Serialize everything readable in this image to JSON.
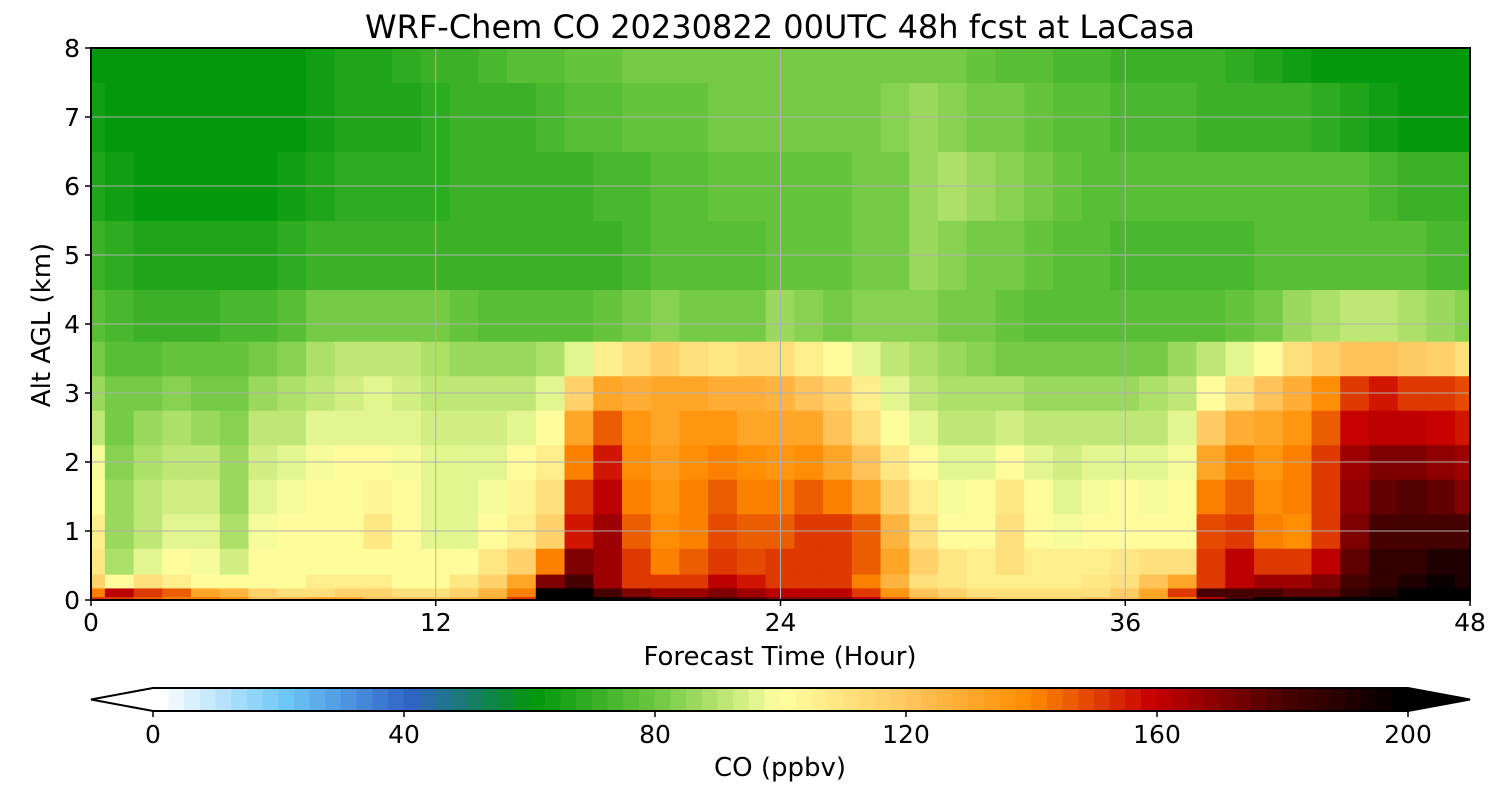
{
  "chart_data": {
    "type": "heatmap",
    "title": "WRF-Chem CO  20230822 00UTC 48h fcst at LaCasa",
    "xlabel": "Forecast Time (Hour)",
    "ylabel": "Alt AGL (km)",
    "xlim": [
      0,
      48
    ],
    "ylim": [
      0,
      8
    ],
    "x_ticks": [
      0,
      12,
      24,
      36,
      48
    ],
    "y_ticks": [
      0,
      1,
      2,
      3,
      4,
      5,
      6,
      7,
      8
    ],
    "grid": true,
    "colorbar": {
      "label": "CO  (ppbv)",
      "min": 0,
      "max": 200,
      "ticks": [
        0,
        40,
        80,
        120,
        160,
        200
      ],
      "extend": "both",
      "colors": [
        "#ffffff",
        "#6ec8f7",
        "#2f64c8",
        "#00960a",
        "#6ec840",
        "#ffffa0",
        "#ffc860",
        "#ff8c00",
        "#c80000",
        "#500000",
        "#000000"
      ]
    },
    "x": [
      0,
      1,
      2,
      3,
      4,
      5,
      6,
      7,
      8,
      9,
      10,
      11,
      12,
      13,
      14,
      15,
      16,
      17,
      18,
      19,
      20,
      21,
      22,
      23,
      24,
      25,
      26,
      27,
      28,
      29,
      30,
      31,
      32,
      33,
      34,
      35,
      36,
      37,
      38,
      39,
      40,
      41,
      42,
      43,
      44,
      45,
      46,
      47,
      48
    ],
    "y": [
      0,
      0.1,
      0.25,
      0.5,
      1,
      1.5,
      2,
      2.5,
      3,
      3.5,
      4,
      5,
      6,
      7,
      8
    ],
    "values": [
      [
        150,
        150,
        145,
        140,
        140,
        135,
        120,
        125,
        130,
        130,
        120,
        120,
        120,
        125,
        130,
        150,
        210,
        205,
        200,
        190,
        180,
        180,
        180,
        175,
        170,
        170,
        170,
        160,
        145,
        130,
        125,
        120,
        115,
        115,
        115,
        120,
        120,
        130,
        140,
        160,
        180,
        200,
        200,
        200,
        210,
        210,
        210,
        215,
        200
      ],
      [
        140,
        160,
        150,
        145,
        130,
        125,
        115,
        110,
        110,
        115,
        115,
        110,
        110,
        115,
        125,
        140,
        200,
        200,
        180,
        170,
        165,
        165,
        170,
        165,
        160,
        160,
        160,
        150,
        135,
        120,
        115,
        112,
        110,
        110,
        110,
        112,
        118,
        130,
        150,
        180,
        180,
        180,
        175,
        175,
        185,
        190,
        200,
        205,
        200
      ],
      [
        115,
        100,
        110,
        105,
        100,
        100,
        100,
        100,
        105,
        105,
        105,
        100,
        102,
        108,
        115,
        130,
        170,
        180,
        165,
        150,
        150,
        150,
        160,
        155,
        150,
        150,
        150,
        140,
        125,
        110,
        108,
        105,
        105,
        105,
        105,
        108,
        112,
        120,
        130,
        150,
        160,
        165,
        165,
        170,
        180,
        185,
        190,
        195,
        190
      ],
      [
        108,
        88,
        95,
        100,
        98,
        94,
        100,
        100,
        100,
        100,
        102,
        100,
        100,
        102,
        108,
        115,
        140,
        170,
        165,
        150,
        140,
        145,
        150,
        148,
        150,
        150,
        150,
        145,
        130,
        115,
        108,
        105,
        110,
        105,
        105,
        105,
        108,
        110,
        112,
        150,
        160,
        150,
        150,
        160,
        175,
        185,
        185,
        190,
        190
      ],
      [
        105,
        85,
        92,
        96,
        95,
        88,
        98,
        100,
        100,
        102,
        108,
        100,
        95,
        95,
        100,
        105,
        115,
        155,
        165,
        145,
        138,
        140,
        148,
        145,
        145,
        150,
        150,
        145,
        125,
        110,
        100,
        102,
        110,
        102,
        98,
        100,
        102,
        100,
        100,
        148,
        150,
        140,
        138,
        150,
        170,
        180,
        180,
        180,
        180
      ],
      [
        102,
        86,
        90,
        94,
        93,
        86,
        96,
        98,
        100,
        100,
        104,
        100,
        96,
        95,
        98,
        104,
        110,
        150,
        160,
        140,
        136,
        140,
        145,
        142,
        140,
        145,
        140,
        130,
        115,
        105,
        98,
        100,
        108,
        100,
        96,
        98,
        100,
        98,
        100,
        140,
        145,
        138,
        140,
        150,
        168,
        175,
        178,
        175,
        172
      ],
      [
        98,
        84,
        88,
        92,
        90,
        85,
        94,
        96,
        98,
        100,
        100,
        98,
        95,
        95,
        96,
        100,
        105,
        140,
        155,
        138,
        134,
        138,
        140,
        138,
        135,
        138,
        130,
        120,
        108,
        100,
        95,
        96,
        100,
        96,
        94,
        95,
        96,
        95,
        98,
        130,
        140,
        135,
        140,
        150,
        165,
        170,
        172,
        168,
        165
      ],
      [
        92,
        82,
        86,
        88,
        86,
        84,
        90,
        92,
        95,
        96,
        97,
        96,
        94,
        93,
        94,
        96,
        100,
        130,
        145,
        135,
        132,
        135,
        135,
        132,
        130,
        130,
        122,
        112,
        102,
        95,
        92,
        92,
        94,
        92,
        90,
        90,
        90,
        92,
        96,
        118,
        128,
        130,
        135,
        145,
        158,
        162,
        162,
        158,
        155
      ],
      [
        85,
        80,
        82,
        84,
        82,
        82,
        86,
        88,
        92,
        94,
        95,
        94,
        92,
        91,
        90,
        92,
        95,
        115,
        130,
        128,
        130,
        132,
        128,
        128,
        125,
        122,
        115,
        105,
        96,
        92,
        88,
        88,
        88,
        86,
        85,
        85,
        85,
        88,
        92,
        102,
        112,
        120,
        128,
        138,
        150,
        155,
        152,
        150,
        148
      ],
      [
        80,
        76,
        76,
        78,
        78,
        78,
        80,
        84,
        88,
        90,
        90,
        90,
        88,
        86,
        85,
        86,
        88,
        95,
        105,
        110,
        115,
        112,
        108,
        110,
        110,
        106,
        100,
        95,
        90,
        88,
        85,
        84,
        82,
        80,
        80,
        80,
        80,
        82,
        86,
        90,
        95,
        102,
        110,
        115,
        120,
        120,
        118,
        115,
        112
      ],
      [
        76,
        74,
        72,
        72,
        72,
        74,
        74,
        76,
        80,
        82,
        80,
        80,
        80,
        78,
        76,
        76,
        76,
        76,
        78,
        80,
        84,
        82,
        80,
        82,
        86,
        84,
        82,
        84,
        84,
        84,
        82,
        80,
        78,
        76,
        76,
        76,
        76,
        76,
        76,
        76,
        78,
        82,
        86,
        88,
        90,
        90,
        88,
        86,
        84
      ],
      [
        70,
        68,
        66,
        66,
        66,
        66,
        66,
        68,
        70,
        72,
        72,
        72,
        72,
        72,
        72,
        72,
        72,
        72,
        72,
        74,
        76,
        76,
        76,
        76,
        78,
        78,
        78,
        80,
        82,
        85,
        84,
        82,
        80,
        78,
        76,
        76,
        74,
        74,
        74,
        74,
        74,
        76,
        76,
        76,
        76,
        76,
        75,
        74,
        74
      ],
      [
        66,
        64,
        62,
        62,
        62,
        62,
        62,
        64,
        66,
        68,
        68,
        68,
        68,
        70,
        70,
        70,
        72,
        72,
        74,
        74,
        76,
        76,
        78,
        78,
        78,
        78,
        78,
        80,
        82,
        86,
        88,
        86,
        84,
        80,
        78,
        76,
        76,
        76,
        76,
        76,
        76,
        76,
        76,
        76,
        75,
        74,
        72,
        70,
        70
      ],
      [
        64,
        62,
        60,
        60,
        60,
        60,
        60,
        62,
        64,
        66,
        66,
        66,
        68,
        70,
        72,
        72,
        74,
        76,
        76,
        78,
        78,
        78,
        80,
        80,
        80,
        80,
        80,
        82,
        84,
        86,
        84,
        82,
        80,
        78,
        76,
        76,
        74,
        74,
        74,
        72,
        72,
        72,
        70,
        68,
        66,
        64,
        62,
        62,
        62
      ],
      [
        62,
        60,
        60,
        60,
        60,
        60,
        60,
        62,
        64,
        66,
        66,
        68,
        70,
        72,
        74,
        76,
        76,
        78,
        78,
        80,
        80,
        80,
        82,
        82,
        80,
        80,
        80,
        82,
        82,
        82,
        80,
        78,
        76,
        76,
        74,
        74,
        72,
        72,
        70,
        70,
        68,
        66,
        64,
        62,
        60,
        60,
        60,
        60,
        60
      ]
    ]
  }
}
